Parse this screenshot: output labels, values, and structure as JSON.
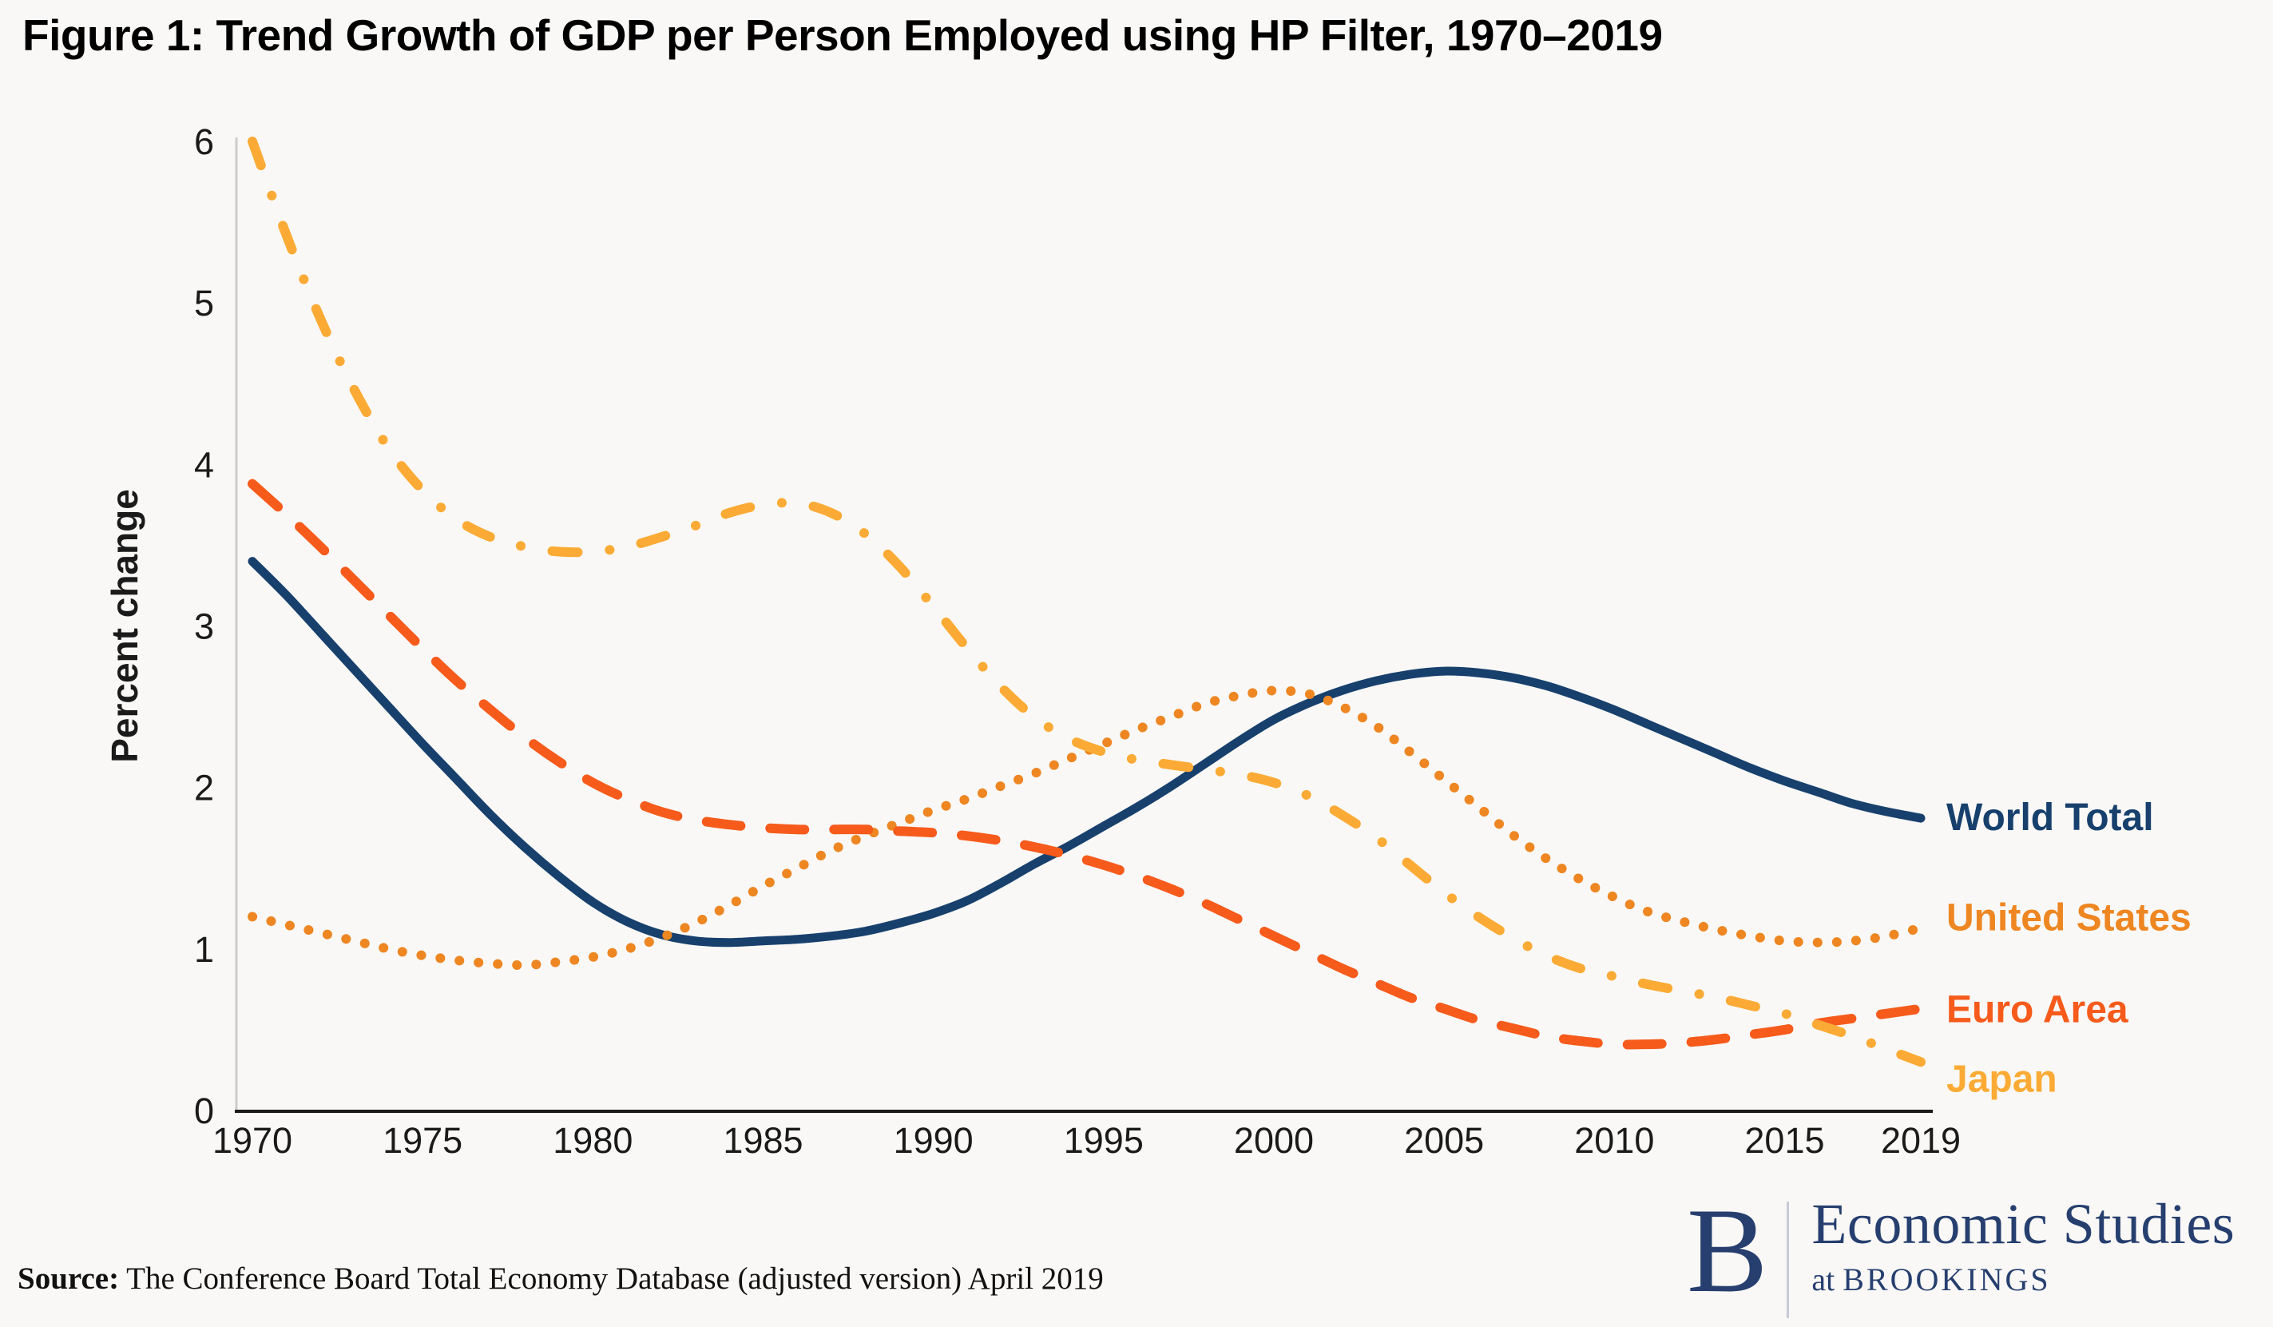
{
  "title": "Figure 1: Trend Growth of GDP per Person Employed using HP Filter, 1970–2019",
  "source": {
    "label": "Source:",
    "text": " The Conference Board Total Economy Database (adjusted version) April 2019"
  },
  "logo": {
    "initial": "B",
    "line1": "Economic Studies",
    "line2_prefix": "at ",
    "line2": "BROOKINGS"
  },
  "colors": {
    "background": "#f9f8f6",
    "title_text": "#000000",
    "axis_y_line": "#cccccc",
    "axis_x_line": "#1a1a1a",
    "tick_text": "#1a1a1a",
    "logo_navy": "#263f6f",
    "world_total": "#17406d",
    "united_states": "#ee8622",
    "euro_area": "#f65b1c",
    "japan": "#fbab35"
  },
  "chart_data": {
    "type": "line",
    "title": "Figure 1: Trend Growth of GDP per Person Employed using HP Filter, 1970–2019",
    "xlabel": "",
    "ylabel": "Percent change",
    "ylim": [
      0,
      6
    ],
    "yticks": [
      0,
      1,
      2,
      3,
      4,
      5,
      6
    ],
    "xticks": [
      1970,
      1975,
      1980,
      1985,
      1990,
      1995,
      2000,
      2005,
      2010,
      2015,
      2019
    ],
    "x_range": [
      1970,
      2019
    ],
    "grid": false,
    "legend_position": "right-of-line-ends",
    "years": [
      1970,
      1971,
      1972,
      1973,
      1974,
      1975,
      1976,
      1977,
      1978,
      1979,
      1980,
      1981,
      1982,
      1983,
      1984,
      1985,
      1986,
      1987,
      1988,
      1989,
      1990,
      1991,
      1992,
      1993,
      1994,
      1995,
      1996,
      1997,
      1998,
      1999,
      2000,
      2001,
      2002,
      2003,
      2004,
      2005,
      2006,
      2007,
      2008,
      2009,
      2010,
      2011,
      2012,
      2013,
      2014,
      2015,
      2016,
      2017,
      2018,
      2019
    ],
    "series": [
      {
        "name": "World Total",
        "color": "#17406d",
        "style": "solid",
        "label_dy": -2,
        "values": [
          3.4,
          3.19,
          2.96,
          2.73,
          2.5,
          2.27,
          2.05,
          1.83,
          1.63,
          1.45,
          1.29,
          1.17,
          1.09,
          1.05,
          1.04,
          1.05,
          1.06,
          1.08,
          1.11,
          1.16,
          1.22,
          1.3,
          1.41,
          1.53,
          1.64,
          1.76,
          1.88,
          2.01,
          2.15,
          2.29,
          2.42,
          2.52,
          2.6,
          2.66,
          2.7,
          2.72,
          2.71,
          2.68,
          2.63,
          2.56,
          2.48,
          2.39,
          2.3,
          2.21,
          2.12,
          2.04,
          1.97,
          1.9,
          1.85,
          1.81
        ]
      },
      {
        "name": "United States",
        "color": "#ee8622",
        "style": "dotted",
        "label_dy": -14,
        "values": [
          1.2,
          1.15,
          1.1,
          1.05,
          1.0,
          0.96,
          0.93,
          0.91,
          0.9,
          0.92,
          0.95,
          1.0,
          1.07,
          1.16,
          1.27,
          1.39,
          1.5,
          1.61,
          1.7,
          1.78,
          1.86,
          1.93,
          2.01,
          2.09,
          2.18,
          2.27,
          2.36,
          2.44,
          2.52,
          2.57,
          2.6,
          2.58,
          2.5,
          2.38,
          2.22,
          2.05,
          1.88,
          1.71,
          1.56,
          1.43,
          1.32,
          1.23,
          1.17,
          1.12,
          1.08,
          1.05,
          1.04,
          1.05,
          1.08,
          1.13
        ]
      },
      {
        "name": "Euro Area",
        "color": "#f65b1c",
        "style": "dashed",
        "label_dy": 0,
        "values": [
          3.88,
          3.69,
          3.49,
          3.28,
          3.07,
          2.86,
          2.66,
          2.48,
          2.31,
          2.16,
          2.03,
          1.93,
          1.85,
          1.8,
          1.77,
          1.75,
          1.74,
          1.74,
          1.74,
          1.73,
          1.72,
          1.7,
          1.67,
          1.63,
          1.58,
          1.52,
          1.45,
          1.37,
          1.28,
          1.18,
          1.08,
          0.98,
          0.88,
          0.79,
          0.7,
          0.63,
          0.56,
          0.51,
          0.46,
          0.43,
          0.41,
          0.41,
          0.42,
          0.44,
          0.47,
          0.5,
          0.54,
          0.57,
          0.6,
          0.63
        ]
      },
      {
        "name": "Japan",
        "color": "#fbab35",
        "style": "dashdot",
        "label_dy": 20,
        "values": [
          6.0,
          5.42,
          4.9,
          4.46,
          4.1,
          3.84,
          3.66,
          3.55,
          3.49,
          3.46,
          3.46,
          3.49,
          3.55,
          3.62,
          3.7,
          3.75,
          3.76,
          3.7,
          3.57,
          3.37,
          3.12,
          2.86,
          2.62,
          2.43,
          2.3,
          2.22,
          2.17,
          2.14,
          2.11,
          2.08,
          2.03,
          1.95,
          1.83,
          1.69,
          1.52,
          1.35,
          1.2,
          1.07,
          0.96,
          0.88,
          0.83,
          0.78,
          0.74,
          0.7,
          0.65,
          0.6,
          0.53,
          0.46,
          0.38,
          0.3
        ]
      }
    ]
  }
}
